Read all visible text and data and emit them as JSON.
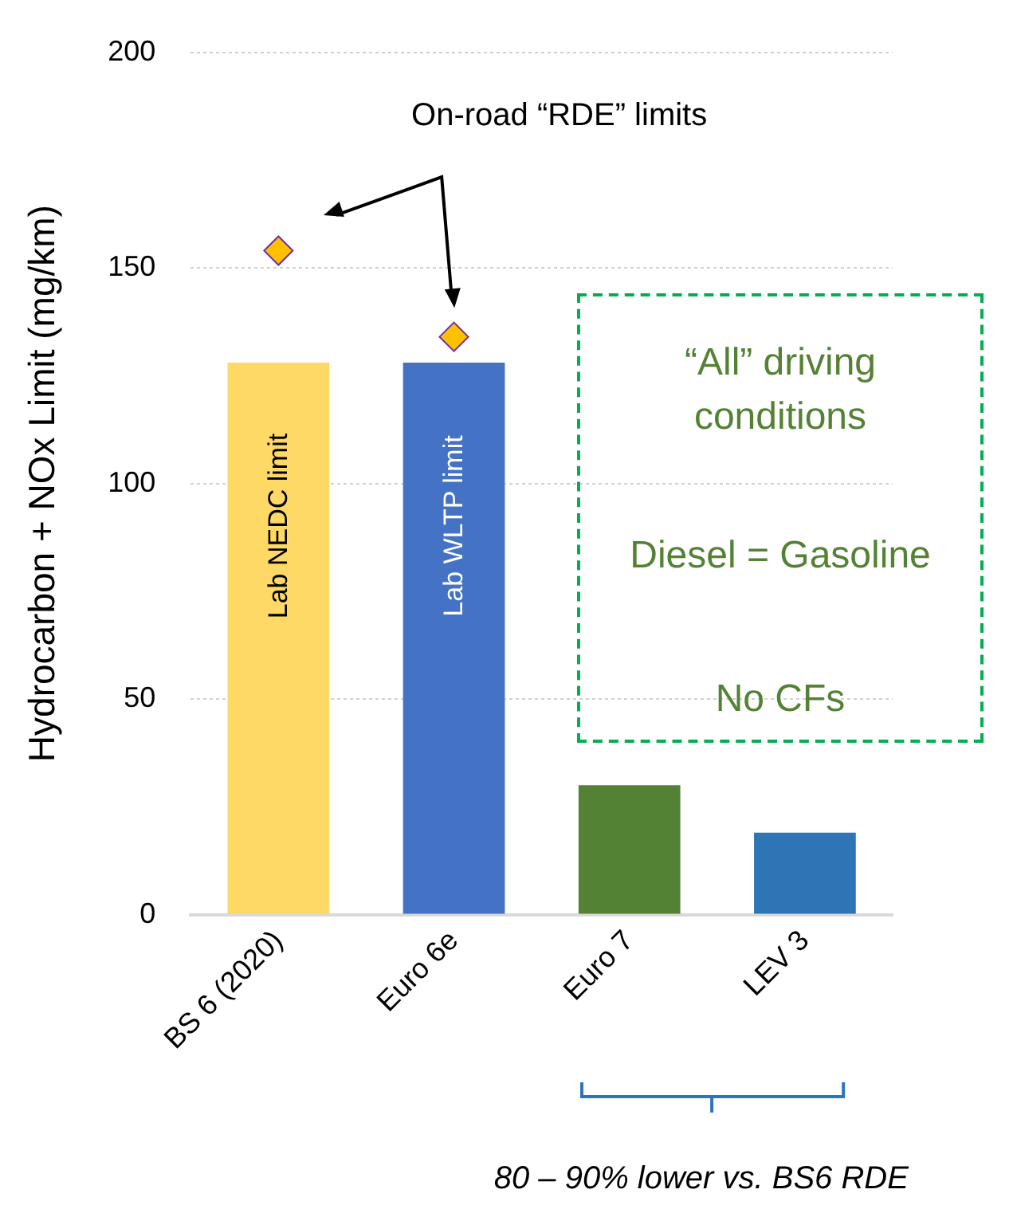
{
  "chart_data": {
    "type": "bar",
    "ylabel": "Hydrocarbon + NOx Limit (mg/km)",
    "categories": [
      "BS 6 (2020)",
      "Euro 6e",
      "Euro 7",
      "LEV 3"
    ],
    "series": [
      {
        "colors": [
          "#ffd966",
          "#4472c4",
          "#548235",
          "#2e75b6"
        ],
        "values": [
          128,
          128,
          30,
          19
        ]
      },
      {
        "type": "scatter",
        "x": [
          "BS 6 (2020)",
          "Euro 6e"
        ],
        "color": "#ffc000",
        "values": [
          154,
          134
        ]
      }
    ],
    "marker": "diamond",
    "ylim": [
      0,
      200
    ],
    "yticks": [
      0,
      50,
      100,
      150,
      200
    ],
    "grid": "y",
    "legend": false,
    "annotations": [
      "On-road “RDE” limits",
      "Lab NEDC limit",
      "Lab WLTP limit",
      "“All” driving conditions",
      "Diesel = Gasoline",
      "No CFs",
      "80 – 90% lower vs. BS6 RDE"
    ]
  }
}
